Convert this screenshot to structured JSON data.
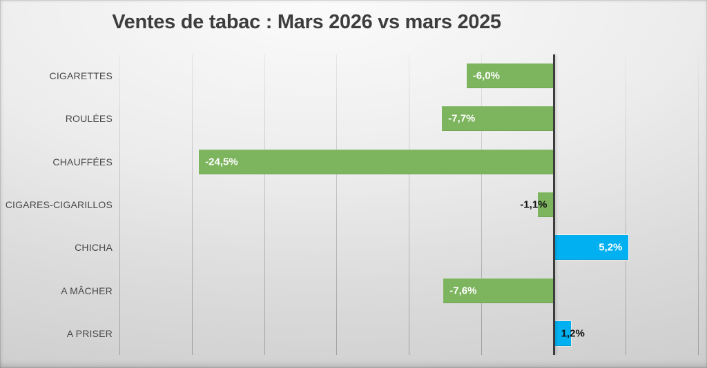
{
  "chart_data": {
    "type": "bar",
    "orientation": "horizontal",
    "title": "Ventes de tabac : Mars 2026 vs mars 2025",
    "categories": [
      "CIGARETTES",
      "ROULÉES",
      "CHAUFFÉES",
      "CIGARES-CIGARILLOS",
      "CHICHA",
      "A MÂCHER",
      "A PRISER"
    ],
    "values": [
      -6.0,
      -7.7,
      -24.5,
      -1.1,
      5.2,
      -7.6,
      1.2
    ],
    "value_labels": [
      "-6,0%",
      "-7,7%",
      "-24,5%",
      "-1,1%",
      "5,2%",
      "-7,6%",
      "1,2%"
    ],
    "label_placements": [
      "inside",
      "inside",
      "inside",
      "outside",
      "inside",
      "inside",
      "outside"
    ],
    "bar_colors": [
      "#7DB55E",
      "#7DB55E",
      "#7DB55E",
      "#7DB55E",
      "#00B0F0",
      "#7DB55E",
      "#00B0F0"
    ],
    "xlabel": "",
    "ylabel": "",
    "xlim": [
      -30,
      10
    ],
    "gridline_step": 5,
    "grid": true,
    "legend": false,
    "axis_tick_labels_visible": false,
    "colors": {
      "negative_bar": "#7DB55E",
      "positive_bar": "#00B0F0",
      "zero_axis_line": "#3C3C3C",
      "gridline": "#AFAFAF",
      "title_text": "#3D3D3D",
      "category_text": "#474747",
      "label_inside_text": "#FFFFFF",
      "label_outside_text": "#111111"
    }
  }
}
